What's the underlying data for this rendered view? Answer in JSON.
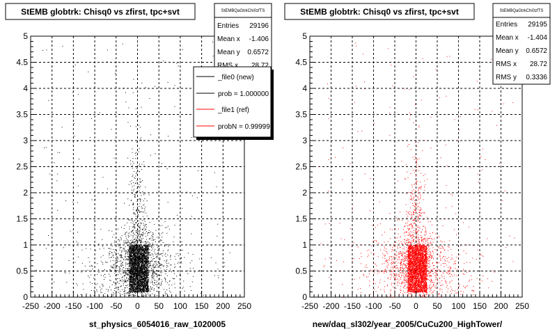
{
  "pads": [
    {
      "title": "StEMB globtrk: Chisq0 vs zfirst, tpc+svt",
      "xlabel": "st_physics_6054016_raw_1020005",
      "stats": {
        "name": "StEMBQaGtrkChi0zfTS",
        "rows": [
          {
            "label": "Entries",
            "value": "29196"
          },
          {
            "label": "Mean x",
            "value": "-1.406"
          },
          {
            "label": "Mean y",
            "value": "0.6572"
          },
          {
            "label": "RMS x",
            "value": "28.72"
          }
        ]
      },
      "legend": [
        {
          "label": "_file0 (new)",
          "color": "#000000"
        },
        {
          "label": "prob = 1.000000",
          "color": "#000000"
        },
        {
          "label": "_file1 (ref)",
          "color": "#ff0000"
        },
        {
          "label": "probN = 0.99999",
          "color": "#ff0000"
        }
      ]
    },
    {
      "title": "StEMB globtrk: Chisq0 vs zfirst, tpc+svt",
      "xlabel": "new/daq_sl302/year_2005/CuCu200_HighTower/",
      "stats": {
        "name": "StEMBQaGtrkChi0zfTS",
        "rows": [
          {
            "label": "Entries",
            "value": "29195"
          },
          {
            "label": "Mean x",
            "value": "-1.404"
          },
          {
            "label": "Mean y",
            "value": "0.6572"
          },
          {
            "label": "RMS x",
            "value": "28.72"
          },
          {
            "label": "RMS y",
            "value": "0.3336"
          }
        ]
      }
    }
  ],
  "chart_data": [
    {
      "type": "scatter",
      "title": "StEMB globtrk: Chisq0 vs zfirst, tpc+svt",
      "xlabel": "st_physics_6054016_raw_1020005",
      "xlim": [
        -250,
        250
      ],
      "ylim": [
        0,
        5
      ],
      "xticks": [
        -250,
        -200,
        -150,
        -100,
        -50,
        0,
        50,
        100,
        150,
        200,
        250
      ],
      "yticks": [
        0,
        0.5,
        1,
        1.5,
        2,
        2.5,
        3,
        3.5,
        4,
        4.5,
        5
      ],
      "grid": true,
      "color": "#000000",
      "entries": 29196,
      "mean_x": -1.406,
      "mean_y": 0.6572,
      "rms_x": 28.72,
      "dense_core": {
        "x_range": [
          -20,
          25
        ],
        "y_range": [
          0.1,
          1.0
        ]
      }
    },
    {
      "type": "scatter",
      "title": "StEMB globtrk: Chisq0 vs zfirst, tpc+svt",
      "xlabel": "new/daq_sl302/year_2005/CuCu200_HighTower/",
      "xlim": [
        -250,
        250
      ],
      "ylim": [
        0,
        5
      ],
      "xticks": [
        -250,
        -200,
        -150,
        -100,
        -50,
        0,
        50,
        100,
        150,
        200,
        250
      ],
      "yticks": [
        0,
        0.5,
        1,
        1.5,
        2,
        2.5,
        3,
        3.5,
        4,
        4.5,
        5
      ],
      "grid": true,
      "color": "#ff0000",
      "entries": 29195,
      "mean_x": -1.404,
      "mean_y": 0.6572,
      "rms_x": 28.72,
      "rms_y": 0.3336,
      "dense_core": {
        "x_range": [
          -20,
          25
        ],
        "y_range": [
          0.1,
          1.0
        ]
      }
    }
  ]
}
